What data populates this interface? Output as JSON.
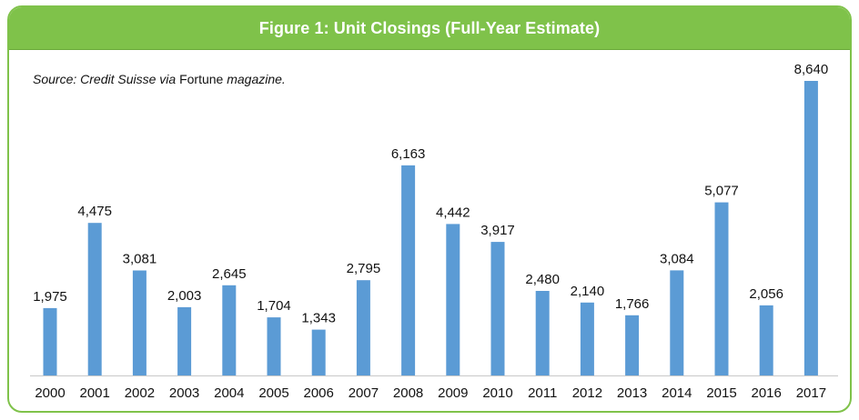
{
  "header": {
    "title": "Figure 1: Unit Closings (Full-Year Estimate)"
  },
  "source_note": {
    "prefix": "Source: Credit Suisse via ",
    "publication": "Fortune",
    "suffix": " magazine."
  },
  "colors": {
    "bar": "#5b9bd5",
    "accent_green": "#7fc24a",
    "baseline": "#c9c9c9"
  },
  "chart_data": {
    "type": "bar",
    "title": "Figure 1: Unit Closings (Full-Year Estimate)",
    "xlabel": "",
    "ylabel": "",
    "categories": [
      "2000",
      "2001",
      "2002",
      "2003",
      "2004",
      "2005",
      "2006",
      "2007",
      "2008",
      "2009",
      "2010",
      "2011",
      "2012",
      "2013",
      "2014",
      "2015",
      "2016",
      "2017"
    ],
    "values": [
      1975,
      4475,
      3081,
      2003,
      2645,
      1704,
      1343,
      2795,
      6163,
      4442,
      3917,
      2480,
      2140,
      1766,
      3084,
      5077,
      2056,
      8640
    ],
    "value_labels": [
      "1,975",
      "4,475",
      "3,081",
      "2,003",
      "2,645",
      "1,704",
      "1,343",
      "2,795",
      "6,163",
      "4,442",
      "3,917",
      "2,480",
      "2,140",
      "1,766",
      "3,084",
      "5,077",
      "2,056",
      "8,640"
    ],
    "ylim": [
      0,
      8640
    ],
    "grid": false,
    "legend": "none"
  }
}
